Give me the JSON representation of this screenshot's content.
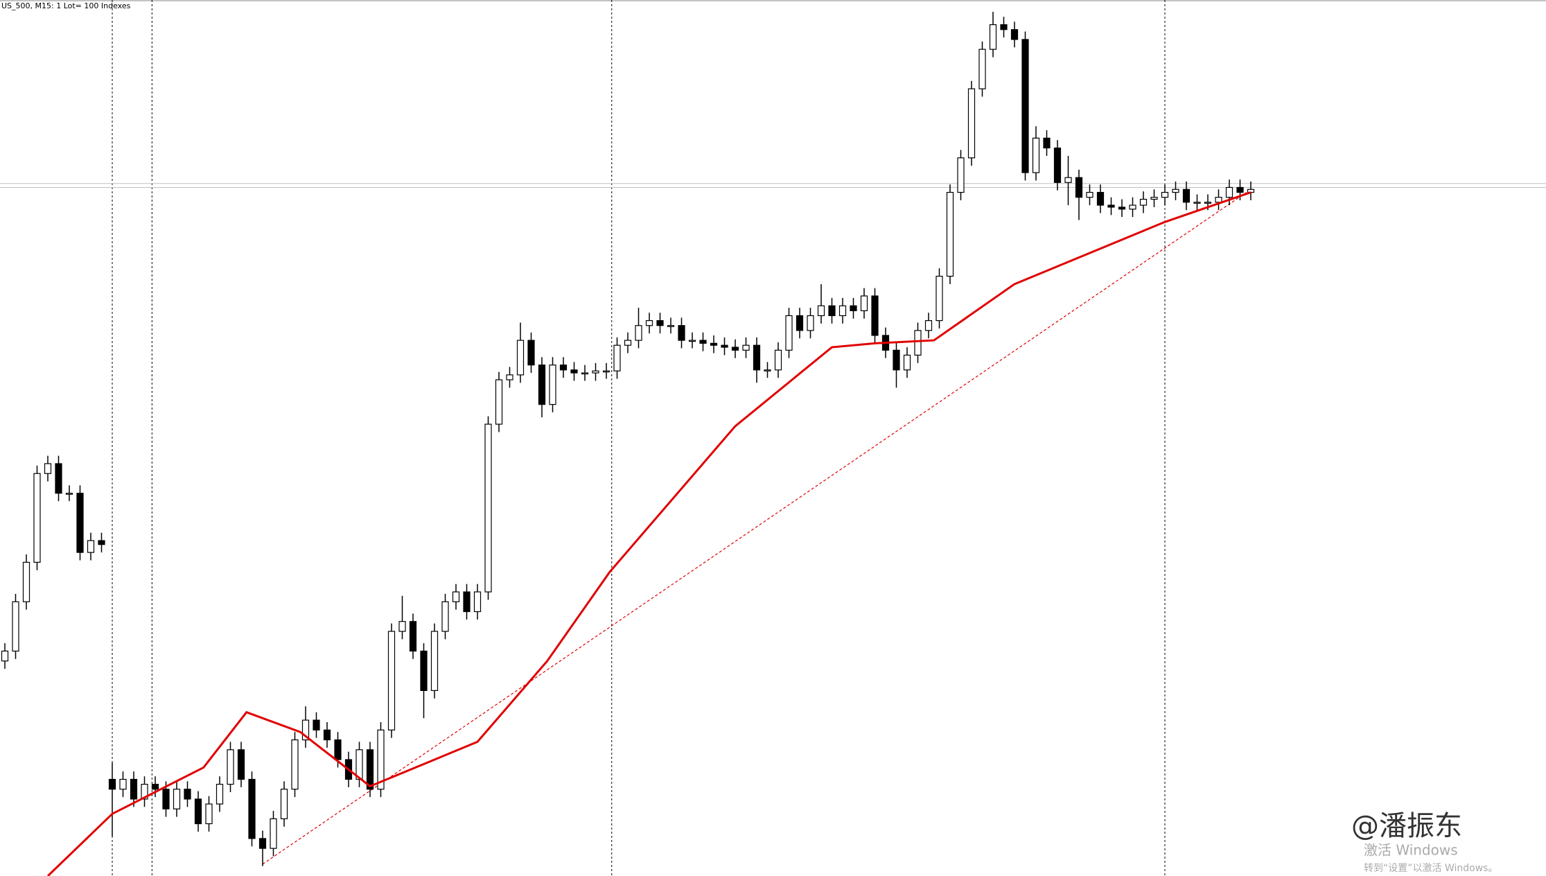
{
  "chart_data": {
    "type": "candlestick",
    "title": "US_500, M15:  1 Lot= 100 Indexes",
    "ylim": [
      0,
      888
    ],
    "up_color": "#ffffff",
    "down_color": "#000000",
    "ohlc": [
      [
        218,
        236,
        210,
        228
      ],
      [
        228,
        286,
        220,
        278
      ],
      [
        278,
        326,
        270,
        318
      ],
      [
        318,
        416,
        310,
        408
      ],
      [
        408,
        426,
        400,
        418
      ],
      [
        418,
        426,
        380,
        388
      ],
      [
        388,
        396,
        380,
        388
      ],
      [
        388,
        396,
        320,
        328
      ],
      [
        328,
        348,
        320,
        340
      ],
      [
        340,
        348,
        328,
        336
      ],
      [
        98,
        115,
        40,
        88
      ],
      [
        88,
        106,
        80,
        98
      ],
      [
        98,
        106,
        70,
        78
      ],
      [
        78,
        101,
        70,
        93
      ],
      [
        93,
        101,
        80,
        88
      ],
      [
        88,
        96,
        60,
        68
      ],
      [
        68,
        96,
        60,
        88
      ],
      [
        88,
        96,
        70,
        78
      ],
      [
        78,
        86,
        45,
        53
      ],
      [
        53,
        81,
        45,
        73
      ],
      [
        73,
        101,
        65,
        93
      ],
      [
        93,
        136,
        85,
        128
      ],
      [
        128,
        136,
        90,
        98
      ],
      [
        98,
        106,
        30,
        38
      ],
      [
        38,
        46,
        10,
        28
      ],
      [
        28,
        66,
        20,
        58
      ],
      [
        58,
        96,
        50,
        88
      ],
      [
        88,
        146,
        80,
        138
      ],
      [
        138,
        172,
        130,
        158
      ],
      [
        158,
        166,
        140,
        148
      ],
      [
        148,
        156,
        130,
        138
      ],
      [
        138,
        146,
        110,
        118
      ],
      [
        118,
        126,
        90,
        98
      ],
      [
        98,
        136,
        90,
        128
      ],
      [
        128,
        136,
        80,
        88
      ],
      [
        88,
        156,
        80,
        148
      ],
      [
        148,
        256,
        140,
        248
      ],
      [
        248,
        284,
        240,
        258
      ],
      [
        258,
        266,
        220,
        228
      ],
      [
        228,
        236,
        160,
        188
      ],
      [
        188,
        256,
        180,
        248
      ],
      [
        248,
        286,
        240,
        278
      ],
      [
        278,
        296,
        270,
        288
      ],
      [
        288,
        296,
        260,
        268
      ],
      [
        268,
        296,
        260,
        288
      ],
      [
        288,
        466,
        280,
        458
      ],
      [
        458,
        511,
        450,
        503
      ],
      [
        503,
        516,
        495,
        508
      ],
      [
        508,
        561,
        500,
        543
      ],
      [
        543,
        551,
        510,
        518
      ],
      [
        518,
        526,
        465,
        478
      ],
      [
        478,
        526,
        470,
        518
      ],
      [
        518,
        526,
        505,
        513
      ],
      [
        513,
        521,
        502,
        510
      ],
      [
        510,
        518,
        502,
        510
      ],
      [
        510,
        520,
        502,
        512
      ],
      [
        512,
        520,
        504,
        512
      ],
      [
        512,
        546,
        504,
        538
      ],
      [
        538,
        551,
        530,
        543
      ],
      [
        543,
        576,
        535,
        558
      ],
      [
        558,
        571,
        550,
        563
      ],
      [
        563,
        571,
        550,
        558
      ],
      [
        558,
        566,
        550,
        558
      ],
      [
        558,
        566,
        535,
        543
      ],
      [
        543,
        551,
        535,
        543
      ],
      [
        543,
        551,
        532,
        540
      ],
      [
        540,
        548,
        530,
        538
      ],
      [
        538,
        546,
        528,
        536
      ],
      [
        536,
        544,
        525,
        533
      ],
      [
        533,
        546,
        525,
        538
      ],
      [
        538,
        546,
        500,
        513
      ],
      [
        513,
        521,
        505,
        513
      ],
      [
        513,
        541,
        505,
        533
      ],
      [
        533,
        576,
        525,
        568
      ],
      [
        568,
        576,
        545,
        553
      ],
      [
        553,
        576,
        545,
        568
      ],
      [
        568,
        600,
        560,
        578
      ],
      [
        578,
        586,
        560,
        568
      ],
      [
        568,
        586,
        560,
        578
      ],
      [
        578,
        586,
        565,
        573
      ],
      [
        573,
        596,
        565,
        588
      ],
      [
        588,
        596,
        540,
        548
      ],
      [
        548,
        556,
        525,
        533
      ],
      [
        533,
        541,
        495,
        513
      ],
      [
        513,
        536,
        505,
        528
      ],
      [
        528,
        561,
        520,
        553
      ],
      [
        553,
        571,
        545,
        563
      ],
      [
        563,
        616,
        555,
        608
      ],
      [
        608,
        701,
        600,
        693
      ],
      [
        693,
        736,
        685,
        728
      ],
      [
        728,
        806,
        720,
        798
      ],
      [
        798,
        846,
        790,
        838
      ],
      [
        838,
        876,
        830,
        863
      ],
      [
        863,
        871,
        850,
        858
      ],
      [
        858,
        866,
        840,
        848
      ],
      [
        848,
        856,
        705,
        713
      ],
      [
        713,
        760,
        705,
        748
      ],
      [
        748,
        756,
        730,
        738
      ],
      [
        738,
        746,
        695,
        703
      ],
      [
        703,
        730,
        680,
        708
      ],
      [
        708,
        716,
        665,
        688
      ],
      [
        688,
        701,
        680,
        693
      ],
      [
        693,
        701,
        672,
        680
      ],
      [
        680,
        688,
        670,
        678
      ],
      [
        678,
        686,
        668,
        676
      ],
      [
        676,
        688,
        668,
        680
      ],
      [
        680,
        694,
        672,
        686
      ],
      [
        686,
        696,
        678,
        688
      ],
      [
        688,
        701,
        680,
        693
      ],
      [
        693,
        704,
        685,
        696
      ],
      [
        696,
        704,
        675,
        683
      ],
      [
        683,
        691,
        675,
        683
      ],
      [
        683,
        691,
        675,
        683
      ],
      [
        683,
        696,
        675,
        688
      ],
      [
        688,
        706,
        680,
        698
      ],
      [
        698,
        706,
        685,
        693
      ],
      [
        693,
        704,
        685,
        696
      ]
    ],
    "ma": {
      "color": "#e00000",
      "x": [
        4,
        10,
        18.5,
        22.5,
        27.5,
        34,
        44,
        50.5,
        56.3,
        68,
        77,
        81,
        86.5,
        94,
        108,
        116
      ],
      "values": [
        0,
        63,
        110,
        166,
        146,
        91,
        136,
        218,
        308,
        456,
        536,
        540,
        543,
        600,
        663,
        693
      ]
    },
    "trend": {
      "color": "#e00000",
      "x": [
        24,
        116
      ],
      "values": [
        12,
        696
      ]
    },
    "hlines": [
      702,
      698
    ],
    "xlines": [
      10,
      13.7,
      56.5,
      108
    ]
  },
  "watermark": {
    "author": "@潘振东",
    "activate": "激活 Windows",
    "activate_hint": "转到“设置”以激活 Windows。"
  }
}
